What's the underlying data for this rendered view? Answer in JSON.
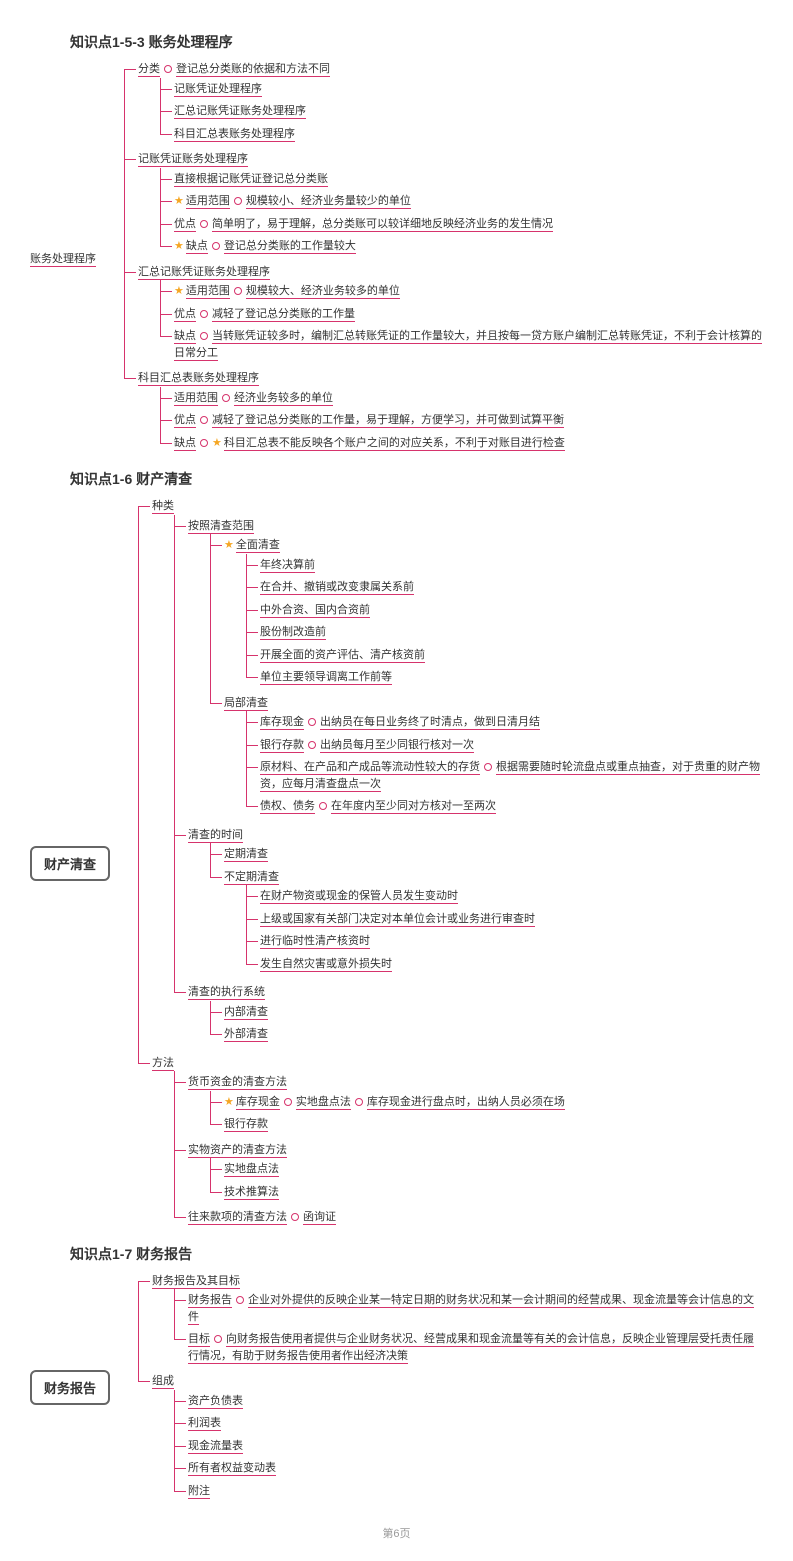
{
  "page_footer": "第6页",
  "colors": {
    "line": "#d6336c",
    "star": "#f5a623",
    "text": "#333"
  },
  "sections": [
    {
      "title": "知识点1-5-3  账务处理程序",
      "root": "账务处理程序",
      "root_boxed": false,
      "children": [
        {
          "label": "分类",
          "dot_after": true,
          "tail": "登记总分类账的依据和方法不同",
          "children": [
            {
              "label": "记账凭证处理程序"
            },
            {
              "label": "汇总记账凭证账务处理程序"
            },
            {
              "label": "科目汇总表账务处理程序"
            }
          ]
        },
        {
          "label": "记账凭证账务处理程序",
          "children": [
            {
              "label": "直接根据记账凭证登记总分类账"
            },
            {
              "star": true,
              "label": "适用范围",
              "dot_after": true,
              "tail": "规模较小、经济业务量较少的单位"
            },
            {
              "label": "优点",
              "dot_after": true,
              "tail": "简单明了，易于理解，总分类账可以较详细地反映经济业务的发生情况"
            },
            {
              "star": true,
              "label": "缺点",
              "dot_after": true,
              "tail": "登记总分类账的工作量较大"
            }
          ]
        },
        {
          "label": "汇总记账凭证账务处理程序",
          "children": [
            {
              "star": true,
              "label": "适用范围",
              "dot_after": true,
              "tail": "规模较大、经济业务较多的单位"
            },
            {
              "label": "优点",
              "dot_after": true,
              "tail": "减轻了登记总分类账的工作量"
            },
            {
              "label": "缺点",
              "dot_after": true,
              "tail": "当转账凭证较多时，编制汇总转账凭证的工作量较大，并且按每一贷方账户编制汇总转账凭证，不利于会计核算的日常分工"
            }
          ]
        },
        {
          "label": "科目汇总表账务处理程序",
          "children": [
            {
              "label": "适用范围",
              "dot_after": true,
              "tail": "经济业务较多的单位"
            },
            {
              "label": "优点",
              "dot_after": true,
              "tail": "减轻了登记总分类账的工作量，易于理解，方便学习，并可做到试算平衡"
            },
            {
              "label": "缺点",
              "dot_after": true,
              "tail_star": true,
              "tail": "科目汇总表不能反映各个账户之间的对应关系，不利于对账目进行检查"
            }
          ]
        }
      ]
    },
    {
      "title": "知识点1-6  财产清查",
      "root": "财产清查",
      "root_boxed": true,
      "children": [
        {
          "label": "种类",
          "children": [
            {
              "label": "按照清查范围",
              "children": [
                {
                  "star": true,
                  "label": "全面清查",
                  "children": [
                    {
                      "label": "年终决算前"
                    },
                    {
                      "label": "在合并、撤销或改变隶属关系前"
                    },
                    {
                      "label": "中外合资、国内合资前"
                    },
                    {
                      "label": "股份制改造前"
                    },
                    {
                      "label": "开展全面的资产评估、清产核资前"
                    },
                    {
                      "label": "单位主要领导调离工作前等"
                    }
                  ]
                },
                {
                  "label": "局部清查",
                  "children": [
                    {
                      "label": "库存现金",
                      "dot_after": true,
                      "tail": "出纳员在每日业务终了时清点，做到日清月结"
                    },
                    {
                      "label": "银行存款",
                      "dot_after": true,
                      "tail": "出纳员每月至少同银行核对一次"
                    },
                    {
                      "label": "原材料、在产品和产成品等流动性较大的存货",
                      "dot_after": true,
                      "tail": "根据需要随时轮流盘点或重点抽查，对于贵重的财产物资，应每月清查盘点一次"
                    },
                    {
                      "label": "债权、债务",
                      "dot_after": true,
                      "tail": "在年度内至少同对方核对一至两次"
                    }
                  ]
                }
              ]
            },
            {
              "label": "清查的时间",
              "children": [
                {
                  "label": "定期清查"
                },
                {
                  "label": "不定期清查",
                  "children": [
                    {
                      "label": "在财产物资或现金的保管人员发生变动时"
                    },
                    {
                      "label": "上级或国家有关部门决定对本单位会计或业务进行审查时"
                    },
                    {
                      "label": "进行临时性清产核资时"
                    },
                    {
                      "label": "发生自然灾害或意外损失时"
                    }
                  ]
                }
              ]
            },
            {
              "label": "清查的执行系统",
              "children": [
                {
                  "label": "内部清查"
                },
                {
                  "label": "外部清查"
                }
              ]
            }
          ]
        },
        {
          "label": "方法",
          "children": [
            {
              "label": "货币资金的清查方法",
              "children": [
                {
                  "star": true,
                  "label": "库存现金",
                  "dot_after": true,
                  "tail": "实地盘点法",
                  "dot_after2": true,
                  "tail2": "库存现金进行盘点时，出纳人员必须在场"
                },
                {
                  "label": "银行存款"
                }
              ]
            },
            {
              "label": "实物资产的清查方法",
              "children": [
                {
                  "label": "实地盘点法"
                },
                {
                  "label": "技术推算法"
                }
              ]
            },
            {
              "label": "往来款项的清查方法",
              "dot_after": true,
              "tail": "函询证"
            }
          ]
        }
      ]
    },
    {
      "title": "知识点1-7  财务报告",
      "root": "财务报告",
      "root_boxed": true,
      "children": [
        {
          "label": "财务报告及其目标",
          "children": [
            {
              "label": "财务报告",
              "dot_after": true,
              "tail": "企业对外提供的反映企业某一特定日期的财务状况和某一会计期间的经营成果、现金流量等会计信息的文件"
            },
            {
              "label": "目标",
              "dot_after": true,
              "tail": "向财务报告使用者提供与企业财务状况、经营成果和现金流量等有关的会计信息，反映企业管理层受托责任履行情况，有助于财务报告使用者作出经济决策"
            }
          ]
        },
        {
          "label": "组成",
          "children": [
            {
              "label": "资产负债表"
            },
            {
              "label": "利润表"
            },
            {
              "label": "现金流量表"
            },
            {
              "label": "所有者权益变动表"
            },
            {
              "label": "附注"
            }
          ]
        }
      ]
    }
  ]
}
